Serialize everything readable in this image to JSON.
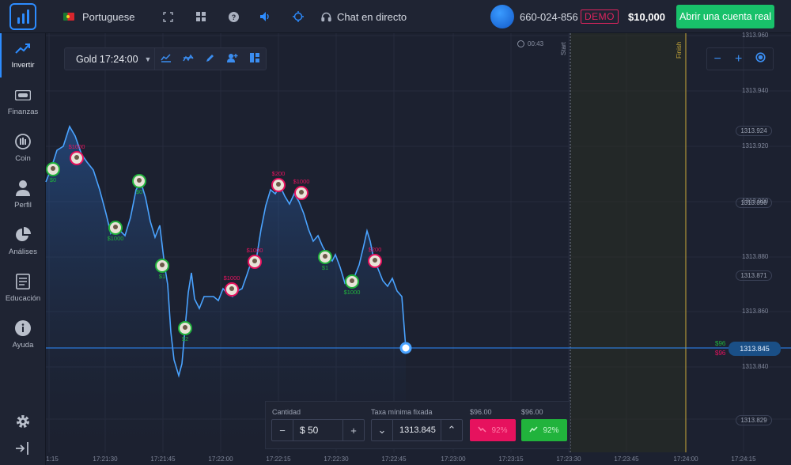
{
  "topbar": {
    "language": "Portuguese",
    "chat_label": "Chat en directo",
    "account_id": "660-024-856",
    "account_mode": "DEMO",
    "balance": "$10,000",
    "open_real_label": "Abrir una cuenta real",
    "icons": [
      "fullscreen-icon",
      "grid-icon",
      "help-icon",
      "sound-icon",
      "target-icon",
      "headset-icon"
    ]
  },
  "sidebar": {
    "items": [
      {
        "label": "Invertir",
        "icon": "trending-up-icon",
        "active": true
      },
      {
        "label": "Finanzas",
        "icon": "cash-icon"
      },
      {
        "label": "Coin",
        "icon": "coin-icon"
      },
      {
        "label": "Perfil",
        "icon": "user-icon"
      },
      {
        "label": "Análises",
        "icon": "pie-chart-icon"
      },
      {
        "label": "Educación",
        "icon": "book-icon"
      },
      {
        "label": "Ayuda",
        "icon": "info-icon"
      }
    ]
  },
  "asset_toolbar": {
    "asset": "Gold 17:24:00",
    "tools": [
      "chart-type-icon",
      "indicators-icon",
      "draw-icon",
      "add-user-icon",
      "layout-icon"
    ]
  },
  "timer": "00:43",
  "markers_text": {
    "start": "Start",
    "finish": "Finish"
  },
  "price_axis": {
    "labels": [
      "1313.960",
      "1313.940",
      "1313.920",
      "1313.900",
      "1313.880",
      "1313.860",
      "1313.840"
    ],
    "pills": [
      "1313.924",
      "1313.898",
      "1313.871",
      "1313.829"
    ],
    "current": "1313.845",
    "side_up": "$96",
    "side_down": "$96"
  },
  "time_axis": [
    "1:15",
    "17:21:30",
    "17:21:45",
    "17:22:00",
    "17:22:15",
    "17:22:30",
    "17:22:45",
    "17:23:00",
    "17:23:15",
    "17:23:30",
    "17:23:45",
    "17:24:00",
    "17:24:15"
  ],
  "trade_panel": {
    "amount_label": "Cantidad",
    "amount_value": "$ 50",
    "rate_label": "Taxa mínima fixada",
    "rate_value": "1313.845",
    "sell_payout": "$96.00",
    "buy_payout": "$96.00",
    "sell_pct": "92%",
    "buy_pct": "92%"
  },
  "trades": [
    {
      "label": "$0",
      "dir": "up"
    },
    {
      "label": "$1000",
      "dir": "down"
    },
    {
      "label": "$0",
      "dir": "up"
    },
    {
      "label": "$1000",
      "dir": "up"
    },
    {
      "label": "$1",
      "dir": "up"
    },
    {
      "label": "$2",
      "dir": "up"
    },
    {
      "label": "$1000",
      "dir": "down"
    },
    {
      "label": "$1000",
      "dir": "down"
    },
    {
      "label": "$200",
      "dir": "down"
    },
    {
      "label": "$1000",
      "dir": "down"
    },
    {
      "label": "$1",
      "dir": "up"
    },
    {
      "label": "$1000",
      "dir": "up"
    },
    {
      "label": "$200",
      "dir": "down"
    }
  ],
  "colors": {
    "accent": "#2d8cff",
    "up": "#21b33c",
    "down": "#e6125e",
    "line": "#4aa3ff"
  }
}
